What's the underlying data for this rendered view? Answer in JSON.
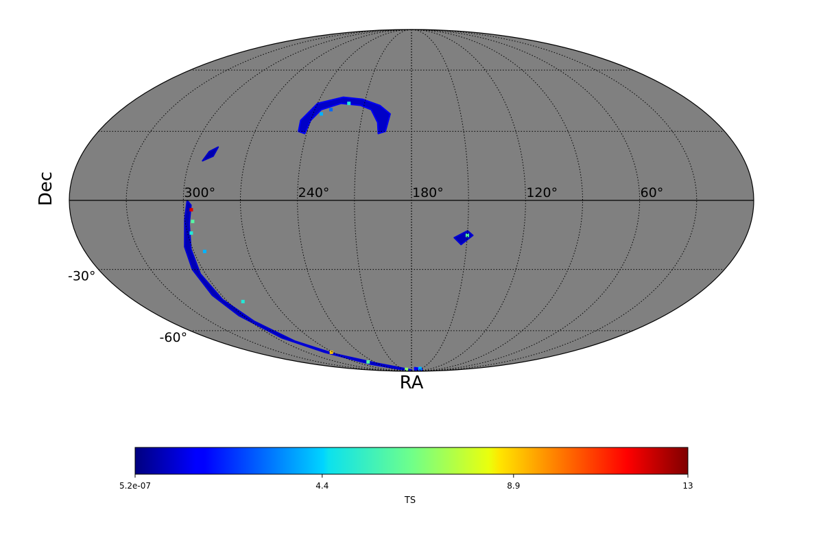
{
  "chart_data": {
    "type": "heatmap",
    "projection": "mollweide",
    "xlabel": "RA",
    "ylabel": "Dec",
    "ra_ticks": [
      300,
      240,
      180,
      120,
      60
    ],
    "ra_tick_labels": [
      "300°",
      "240°",
      "180°",
      "120°",
      "60°"
    ],
    "dec_ticks": [
      -30,
      -60
    ],
    "dec_tick_labels": [
      "-30°",
      "-60°"
    ],
    "grid": true,
    "background_color": "#808080",
    "colorbar": {
      "label": "TS",
      "colormap": "jet",
      "range": [
        5.2e-07,
        13
      ],
      "orientation": "horizontal",
      "placement": "bottom",
      "tick_values": [
        5.2e-07,
        4.4,
        8.9,
        13
      ],
      "tick_labels": [
        "5.2e-07",
        "4.4",
        "8.9",
        "13"
      ]
    },
    "regions": [
      {
        "name": "southern-arc",
        "ts_typical": 0.6,
        "outline": [
          [
            298,
            0
          ],
          [
            300,
            -8
          ],
          [
            304,
            -20
          ],
          [
            306,
            -30
          ],
          [
            306,
            -42
          ],
          [
            303,
            -52
          ],
          [
            295,
            -64
          ],
          [
            280,
            -73
          ],
          [
            255,
            -82
          ],
          [
            220,
            -87
          ],
          [
            185,
            -88
          ],
          [
            178,
            -88
          ],
          [
            200,
            -86
          ],
          [
            240,
            -81
          ],
          [
            272,
            -74
          ],
          [
            288,
            -66
          ],
          [
            297,
            -55
          ],
          [
            302,
            -44
          ],
          [
            303,
            -32
          ],
          [
            301,
            -21
          ],
          [
            298,
            -10
          ],
          [
            296,
            -2
          ]
        ],
        "hotspots": [
          [
            296,
            -4,
            12
          ],
          [
            296,
            -9,
            6
          ],
          [
            298,
            -14,
            5
          ],
          [
            294,
            -22,
            4
          ],
          [
            290,
            -45,
            5
          ],
          [
            272,
            -73,
            9
          ],
          [
            250,
            -80,
            6
          ],
          [
            198,
            -87,
            7
          ]
        ]
      },
      {
        "name": "northern-arc",
        "ts_typical": 0.8,
        "outline": [
          [
            245,
            30
          ],
          [
            246,
            35
          ],
          [
            240,
            43
          ],
          [
            225,
            46
          ],
          [
            212,
            45
          ],
          [
            200,
            42
          ],
          [
            193,
            38
          ],
          [
            195,
            30
          ],
          [
            199,
            29
          ],
          [
            200,
            34
          ],
          [
            205,
            40
          ],
          [
            212,
            42
          ],
          [
            225,
            43
          ],
          [
            236,
            40
          ],
          [
            240,
            35
          ],
          [
            241,
            29
          ]
        ],
        "hotspots": [
          [
            220,
            43,
            5
          ],
          [
            235,
            38,
            4
          ],
          [
            230,
            40,
            3
          ]
        ]
      },
      {
        "name": "small-north-patch",
        "ts_typical": 0.5,
        "outline": [
          [
            293,
            17
          ],
          [
            291,
            21
          ],
          [
            287,
            23
          ],
          [
            288,
            19
          ]
        ],
        "hotspots": []
      },
      {
        "name": "right-patch",
        "ts_typical": 0.6,
        "outline": [
          [
            157,
            -16
          ],
          [
            150,
            -13
          ],
          [
            147,
            -15
          ],
          [
            153,
            -19
          ]
        ],
        "hotspots": [
          [
            150,
            -15,
            6
          ]
        ]
      },
      {
        "name": "south-pole-patch",
        "ts_typical": 1.0,
        "outline": [
          [
            172,
            -85
          ],
          [
            150,
            -86
          ],
          [
            130,
            -88
          ],
          [
            165,
            -88
          ]
        ],
        "hotspots": [
          [
            155,
            -86,
            4
          ]
        ]
      }
    ]
  }
}
